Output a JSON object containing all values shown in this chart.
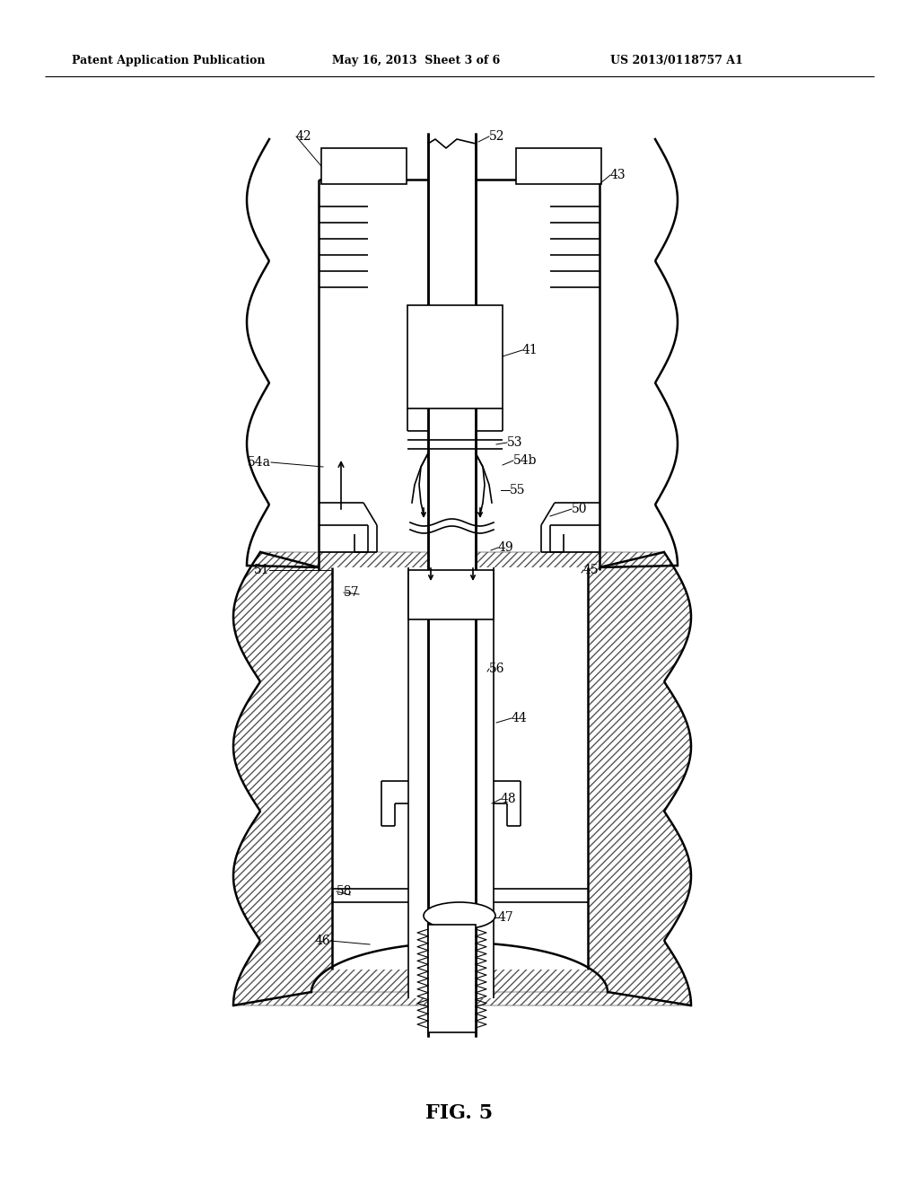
{
  "header_left": "Patent Application Publication",
  "header_mid": "May 16, 2013  Sheet 3 of 6",
  "header_right": "US 2013/0118757 A1",
  "fig_label": "FIG. 5",
  "bg_color": "#ffffff",
  "lc": "#000000"
}
